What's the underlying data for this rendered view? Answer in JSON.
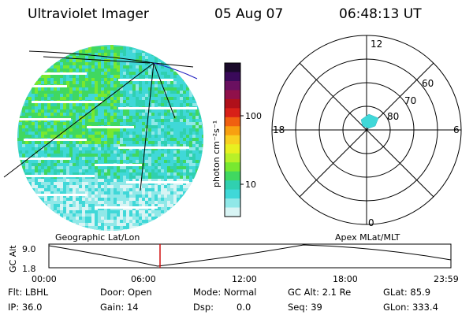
{
  "header": {
    "instrument": "Ultraviolet Imager",
    "date": "05 Aug 07",
    "time": "06:48:13 UT"
  },
  "colorbar": {
    "unit_label": "photon cm⁻²s⁻¹",
    "ticks": [
      "100",
      "10"
    ],
    "colors": [
      "#1a0a2a",
      "#3a0a5a",
      "#6a1060",
      "#90104a",
      "#b0101a",
      "#d82018",
      "#f06010",
      "#f8a010",
      "#f8d020",
      "#e8f020",
      "#b8f028",
      "#78e830",
      "#40d860",
      "#30d0b0",
      "#40d8d8",
      "#90e8e8",
      "#d8f4f4"
    ]
  },
  "polar_plot": {
    "mlt_labels": [
      "12",
      "18",
      "6",
      "0"
    ],
    "mlat_labels": [
      "60",
      "70",
      "80"
    ],
    "aurora_color": "#40d8d8"
  },
  "timeline": {
    "left_title": "Geographic Lat/Lon",
    "right_title": "Apex MLat/MLT",
    "ylabel": "GC Alt",
    "yticks": [
      "9.0",
      "1.8"
    ],
    "xticks": [
      "00:00",
      "06:00",
      "12:00",
      "18:00",
      "23:59"
    ],
    "marker_color": "#d01010"
  },
  "info": {
    "flt": "Flt: LBHL",
    "ip": "IP: 36.0",
    "door": "Door: Open",
    "gain": "Gain: 14",
    "mode": "Mode: Normal",
    "dsp_label": "Dsp:",
    "dsp_value": "0.0",
    "gc_alt": "GC Alt: 2.1 Re",
    "seq": "Seq: 39",
    "glat": "GLat:  85.9",
    "glon": "GLon: 333.4"
  }
}
